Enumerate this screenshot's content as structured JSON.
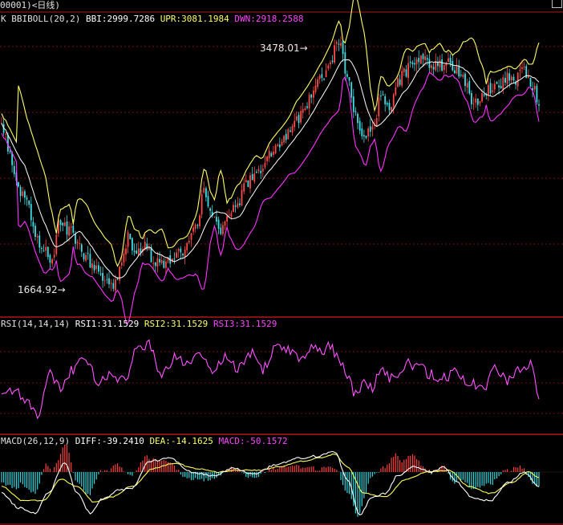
{
  "window": {
    "title": "00001)<日线)"
  },
  "colors": {
    "background": "#000000",
    "frame": "#b01818",
    "grid": "#7a1010",
    "upper_band": "#ffff66",
    "mid_band": "#ffffff",
    "lower_band": "#ff33ff",
    "candle_up": "#ff4a4a",
    "candle_down": "#3de0e6",
    "rsi_line": "#ff55ff",
    "diff_line": "#ffffff",
    "dea_line": "#ffff55",
    "macd_pos": "#ff4040",
    "macd_neg": "#30d8e0"
  },
  "panels": {
    "boll": {
      "prefix": "K",
      "name": "BBIBOLL(20,2)",
      "bbi": "BBI:2999.7286",
      "upr": "UPR:3081.1984",
      "dwn": "DWN:2918.2588"
    },
    "rsi": {
      "name": "RSI(14,14,14)",
      "rsi1": "RSI1:31.1529",
      "rsi2": "RSI2:31.1529",
      "rsi3": "RSI3:31.1529"
    },
    "macd": {
      "name": "MACD(26,12,9)",
      "diff": "DIFF:-39.2410",
      "dea": "DEA:-14.1625",
      "macd": "MACD:-50.1572"
    }
  },
  "annotations": {
    "high": "3478.01",
    "low": "1664.92"
  },
  "chart_data": [
    {
      "type": "candlestick",
      "indicator": "BBIBOLL(20,2)",
      "anchors": [
        [
          0,
          2880
        ],
        [
          4,
          2650
        ],
        [
          8,
          2400
        ],
        [
          12,
          2300
        ],
        [
          16,
          2050
        ],
        [
          20,
          1970
        ],
        [
          24,
          1900
        ],
        [
          28,
          2180
        ],
        [
          32,
          2100
        ],
        [
          36,
          2000
        ],
        [
          40,
          1900
        ],
        [
          44,
          1850
        ],
        [
          48,
          1750
        ],
        [
          52,
          1700
        ],
        [
          56,
          1800
        ],
        [
          60,
          2050
        ],
        [
          64,
          1950
        ],
        [
          68,
          2000
        ],
        [
          72,
          1880
        ],
        [
          76,
          1870
        ],
        [
          80,
          1900
        ],
        [
          84,
          1950
        ],
        [
          88,
          1980
        ],
        [
          92,
          2100
        ],
        [
          96,
          2380
        ],
        [
          100,
          2180
        ],
        [
          104,
          2120
        ],
        [
          108,
          2250
        ],
        [
          112,
          2300
        ],
        [
          116,
          2450
        ],
        [
          120,
          2500
        ],
        [
          124,
          2550
        ],
        [
          128,
          2650
        ],
        [
          132,
          2700
        ],
        [
          136,
          2800
        ],
        [
          140,
          2900
        ],
        [
          144,
          3000
        ],
        [
          148,
          3100
        ],
        [
          152,
          3200
        ],
        [
          156,
          3320
        ],
        [
          160,
          3478.01
        ],
        [
          164,
          3200
        ],
        [
          168,
          2950
        ],
        [
          172,
          2750
        ],
        [
          176,
          2850
        ],
        [
          180,
          3050
        ],
        [
          184,
          3000
        ],
        [
          188,
          3180
        ],
        [
          192,
          3250
        ],
        [
          196,
          3320
        ],
        [
          200,
          3350
        ],
        [
          204,
          3300
        ],
        [
          208,
          3280
        ],
        [
          212,
          3330
        ],
        [
          216,
          3250
        ],
        [
          220,
          3180
        ],
        [
          224,
          3000
        ],
        [
          228,
          3050
        ],
        [
          232,
          3120
        ],
        [
          236,
          3150
        ],
        [
          240,
          3200
        ],
        [
          244,
          3180
        ],
        [
          248,
          3260
        ],
        [
          252,
          3150
        ],
        [
          255,
          3010
        ]
      ],
      "series": [
        {
          "name": "BBI",
          "last": 2999.7286
        },
        {
          "name": "UPR",
          "last": 3081.1984
        },
        {
          "name": "DWN",
          "last": 2918.2588
        }
      ],
      "y_range": [
        1530,
        3620
      ],
      "high_label": "3478.01",
      "low_label": "1664.92"
    },
    {
      "type": "line",
      "indicator": "RSI(14,14,14)",
      "anchors": [
        [
          0,
          40
        ],
        [
          6,
          40
        ],
        [
          12,
          34
        ],
        [
          17,
          28
        ],
        [
          23,
          50
        ],
        [
          28,
          42
        ],
        [
          34,
          52
        ],
        [
          40,
          58
        ],
        [
          46,
          44
        ],
        [
          52,
          50
        ],
        [
          58,
          45
        ],
        [
          64,
          62
        ],
        [
          70,
          66
        ],
        [
          76,
          48
        ],
        [
          82,
          58
        ],
        [
          88,
          55
        ],
        [
          94,
          60
        ],
        [
          100,
          52
        ],
        [
          106,
          58
        ],
        [
          112,
          53
        ],
        [
          118,
          61
        ],
        [
          124,
          52
        ],
        [
          130,
          63
        ],
        [
          136,
          62
        ],
        [
          142,
          58
        ],
        [
          148,
          65
        ],
        [
          152,
          62
        ],
        [
          156,
          65
        ],
        [
          160,
          58
        ],
        [
          164,
          48
        ],
        [
          168,
          38
        ],
        [
          172,
          45
        ],
        [
          176,
          41
        ],
        [
          180,
          52
        ],
        [
          186,
          46
        ],
        [
          192,
          55
        ],
        [
          198,
          53
        ],
        [
          204,
          49
        ],
        [
          210,
          47
        ],
        [
          216,
          50
        ],
        [
          222,
          45
        ],
        [
          228,
          40
        ],
        [
          234,
          52
        ],
        [
          240,
          46
        ],
        [
          246,
          52
        ],
        [
          251,
          54
        ],
        [
          255,
          36
        ]
      ],
      "series": [
        {
          "name": "RSI1",
          "last": 31.1529
        },
        {
          "name": "RSI2",
          "last": 31.1529
        },
        {
          "name": "RSI3",
          "last": 31.1529
        }
      ],
      "y_range": [
        22,
        72
      ]
    },
    {
      "type": "bar",
      "indicator": "MACD(26,12,9)",
      "diff_anchors": [
        [
          0,
          -60
        ],
        [
          8,
          -100
        ],
        [
          16,
          -115
        ],
        [
          22,
          -60
        ],
        [
          30,
          25
        ],
        [
          36,
          -60
        ],
        [
          42,
          -115
        ],
        [
          48,
          -75
        ],
        [
          56,
          -50
        ],
        [
          62,
          -45
        ],
        [
          70,
          30
        ],
        [
          80,
          38
        ],
        [
          90,
          0
        ],
        [
          100,
          -10
        ],
        [
          110,
          10
        ],
        [
          120,
          -5
        ],
        [
          130,
          20
        ],
        [
          140,
          38
        ],
        [
          150,
          45
        ],
        [
          158,
          58
        ],
        [
          164,
          -20
        ],
        [
          170,
          -120
        ],
        [
          176,
          -70
        ],
        [
          182,
          -60
        ],
        [
          188,
          -10
        ],
        [
          196,
          15
        ],
        [
          204,
          0
        ],
        [
          210,
          15
        ],
        [
          216,
          -30
        ],
        [
          224,
          -75
        ],
        [
          232,
          -80
        ],
        [
          240,
          -30
        ],
        [
          248,
          0
        ],
        [
          255,
          -39.241
        ]
      ],
      "dea_anchors": [
        [
          0,
          -40
        ],
        [
          10,
          -80
        ],
        [
          20,
          -80
        ],
        [
          28,
          -20
        ],
        [
          36,
          -40
        ],
        [
          44,
          -85
        ],
        [
          52,
          -70
        ],
        [
          62,
          -40
        ],
        [
          72,
          10
        ],
        [
          82,
          25
        ],
        [
          92,
          10
        ],
        [
          102,
          0
        ],
        [
          112,
          5
        ],
        [
          122,
          5
        ],
        [
          132,
          15
        ],
        [
          142,
          30
        ],
        [
          152,
          40
        ],
        [
          158,
          50
        ],
        [
          164,
          15
        ],
        [
          172,
          -60
        ],
        [
          182,
          -70
        ],
        [
          192,
          -20
        ],
        [
          202,
          0
        ],
        [
          212,
          5
        ],
        [
          222,
          -40
        ],
        [
          232,
          -60
        ],
        [
          242,
          -30
        ],
        [
          250,
          0
        ],
        [
          255,
          -14.1625
        ]
      ],
      "series": [
        {
          "name": "DIFF",
          "last": -39.241
        },
        {
          "name": "DEA",
          "last": -14.1625
        },
        {
          "name": "MACD",
          "last": -50.1572
        }
      ],
      "y_range": [
        -135,
        72
      ]
    }
  ]
}
